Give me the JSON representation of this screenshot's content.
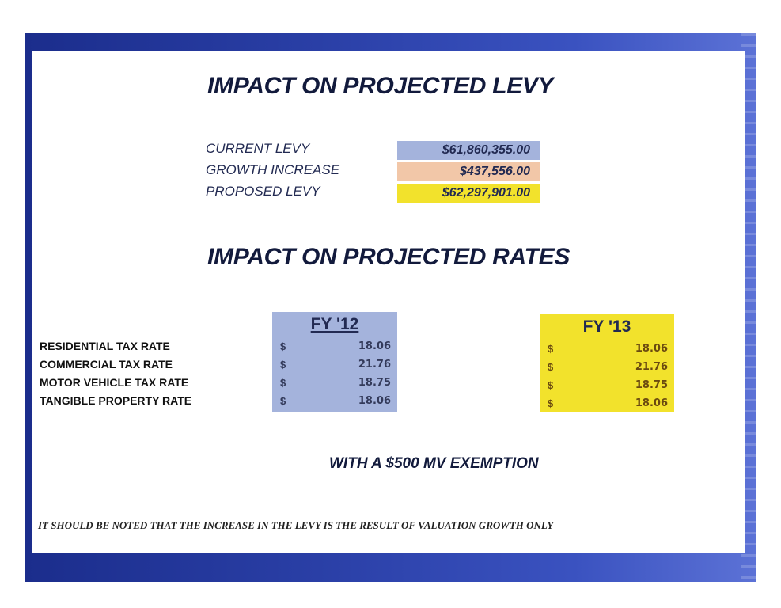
{
  "levy": {
    "title": "IMPACT ON PROJECTED LEVY",
    "rows": [
      {
        "label": "CURRENT LEVY",
        "value": "$61,860,355.00",
        "color": "#a4b3dc"
      },
      {
        "label": "GROWTH INCREASE",
        "value": "$437,556.00",
        "color": "#f2c7a8"
      },
      {
        "label": "PROPOSED LEVY",
        "value": "$62,297,901.00",
        "color": "#f2e22c"
      }
    ]
  },
  "rates": {
    "title": "IMPACT ON PROJECTED RATES",
    "row_labels": [
      "RESIDENTIAL TAX RATE",
      "COMMERCIAL TAX RATE",
      "MOTOR VEHICLE TAX RATE",
      "TANGIBLE PROPERTY RATE"
    ],
    "currency_symbol": "$",
    "fy12": {
      "header": "FY '12",
      "color": "#a4b3dc",
      "values": [
        "18.06",
        "21.76",
        "18.75",
        "18.06"
      ]
    },
    "fy13": {
      "header": "FY '13",
      "color": "#f2e22c",
      "values": [
        "18.06",
        "21.76",
        "18.75",
        "18.06"
      ]
    }
  },
  "exemption_note": "WITH A $500 MV EXEMPTION",
  "footnote": "IT SHOULD BE NOTED THAT THE INCREASE IN THE LEVY IS THE RESULT OF VALUATION GROWTH ONLY",
  "colors": {
    "frame": "#2a3fa6"
  }
}
